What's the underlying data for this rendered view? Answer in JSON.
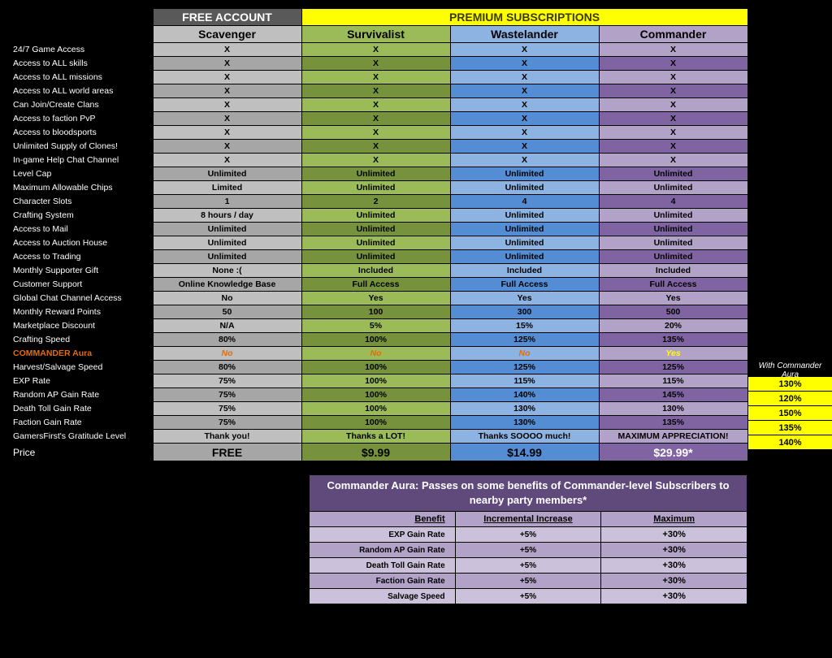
{
  "headers": {
    "free": "FREE ACCOUNT",
    "premium": "PREMIUM SUBSCRIPTIONS",
    "tiers": [
      "Scavenger",
      "Survivalist",
      "Wastelander",
      "Commander"
    ]
  },
  "rows": [
    {
      "label": "24/7 Game Access",
      "sca": "X",
      "sur": "X",
      "was": "X",
      "com": "X"
    },
    {
      "label": "Access to ALL skills",
      "sca": "X",
      "sur": "X",
      "was": "X",
      "com": "X"
    },
    {
      "label": "Access to ALL missions",
      "sca": "X",
      "sur": "X",
      "was": "X",
      "com": "X"
    },
    {
      "label": "Access to ALL world areas",
      "sca": "X",
      "sur": "X",
      "was": "X",
      "com": "X"
    },
    {
      "label": "Can Join/Create Clans",
      "sca": "X",
      "sur": "X",
      "was": "X",
      "com": "X"
    },
    {
      "label": "Access to faction PvP",
      "sca": "X",
      "sur": "X",
      "was": "X",
      "com": "X"
    },
    {
      "label": "Access to bloodsports",
      "sca": "X",
      "sur": "X",
      "was": "X",
      "com": "X"
    },
    {
      "label": "Unlimited Supply of Clones!",
      "sca": "X",
      "sur": "X",
      "was": "X",
      "com": "X"
    },
    {
      "label": "In-game Help Chat Channel",
      "sca": "X",
      "sur": "X",
      "was": "X",
      "com": "X"
    },
    {
      "label": "Level Cap",
      "sca": "Unlimited",
      "sur": "Unlimited",
      "was": "Unlimited",
      "com": "Unlimited"
    },
    {
      "label": "Maximum Allowable Chips",
      "sca": "Limited",
      "sur": "Unlimited",
      "was": "Unlimited",
      "com": "Unlimited"
    },
    {
      "label": "Character Slots",
      "sca": "1",
      "sur": "2",
      "was": "4",
      "com": "4"
    },
    {
      "label": "Crafting System",
      "sca": "8 hours / day",
      "sur": "Unlimited",
      "was": "Unlimited",
      "com": "Unlimited"
    },
    {
      "label": "Access to Mail",
      "sca": "Unlimited",
      "sur": "Unlimited",
      "was": "Unlimited",
      "com": "Unlimited"
    },
    {
      "label": "Access to Auction House",
      "sca": "Unlimited",
      "sur": "Unlimited",
      "was": "Unlimited",
      "com": "Unlimited"
    },
    {
      "label": "Access to Trading",
      "sca": "Unlimited",
      "sur": "Unlimited",
      "was": "Unlimited",
      "com": "Unlimited"
    },
    {
      "label": "Monthly Supporter Gift",
      "sca": "None :(",
      "sur": "Included",
      "was": "Included",
      "com": "Included"
    },
    {
      "label": "Customer Support",
      "sca": "Online Knowledge Base",
      "sur": "Full Access",
      "was": "Full Access",
      "com": "Full Access"
    },
    {
      "label": "Global Chat Channel Access",
      "sca": "No",
      "sur": "Yes",
      "was": "Yes",
      "com": "Yes"
    },
    {
      "label": "Monthly Reward Points",
      "sca": "50",
      "sur": "100",
      "was": "300",
      "com": "500"
    },
    {
      "label": "Marketplace Discount",
      "sca": "N/A",
      "sur": "5%",
      "was": "15%",
      "com": "20%"
    },
    {
      "label": "Crafting Speed",
      "sca": "80%",
      "sur": "100%",
      "was": "125%",
      "com": "135%"
    },
    {
      "label": "COMMANDER Aura",
      "sca": "No",
      "sur": "No",
      "was": "No",
      "com": "Yes",
      "aura": true
    },
    {
      "label": "Harvest/Salvage Speed",
      "sca": "80%",
      "sur": "100%",
      "was": "125%",
      "com": "125%",
      "side": "130%"
    },
    {
      "label": "EXP Rate",
      "sca": "75%",
      "sur": "100%",
      "was": "115%",
      "com": "115%",
      "side": "120%"
    },
    {
      "label": "Random AP Gain Rate",
      "sca": "75%",
      "sur": "100%",
      "was": "140%",
      "com": "145%",
      "side": "150%"
    },
    {
      "label": "Death Toll Gain Rate",
      "sca": "75%",
      "sur": "100%",
      "was": "130%",
      "com": "130%",
      "side": "135%"
    },
    {
      "label": "Faction Gain Rate",
      "sca": "75%",
      "sur": "100%",
      "was": "130%",
      "com": "135%",
      "side": "140%"
    },
    {
      "label": "GamersFirst's Gratitude Level",
      "sca": "Thank you!",
      "sur": "Thanks a LOT!",
      "was": "Thanks SOOOO much!",
      "com": "MAXIMUM APPRECIATION!"
    }
  ],
  "price": {
    "label": "Price",
    "sca": "FREE",
    "sur": "$9.99",
    "was": "$14.99",
    "com": "$29.99*"
  },
  "side_header": "With Commander Aura",
  "aura_box": {
    "title": "Commander Aura: Passes on some benefits of Commander-level Subscribers to nearby party members*",
    "cols": [
      "Benefit",
      "Incremental Increase",
      "Maximum"
    ],
    "rows": [
      {
        "b": "EXP Gain Rate",
        "i": "+5%",
        "m": "+30%"
      },
      {
        "b": "Random AP Gain Rate",
        "i": "+5%",
        "m": "+30%"
      },
      {
        "b": "Death Toll Gain Rate",
        "i": "+5%",
        "m": "+30%"
      },
      {
        "b": "Faction Gain Rate",
        "i": "+5%",
        "m": "+30%"
      },
      {
        "b": "Salvage Speed",
        "i": "+5%",
        "m": "+30%"
      }
    ]
  }
}
